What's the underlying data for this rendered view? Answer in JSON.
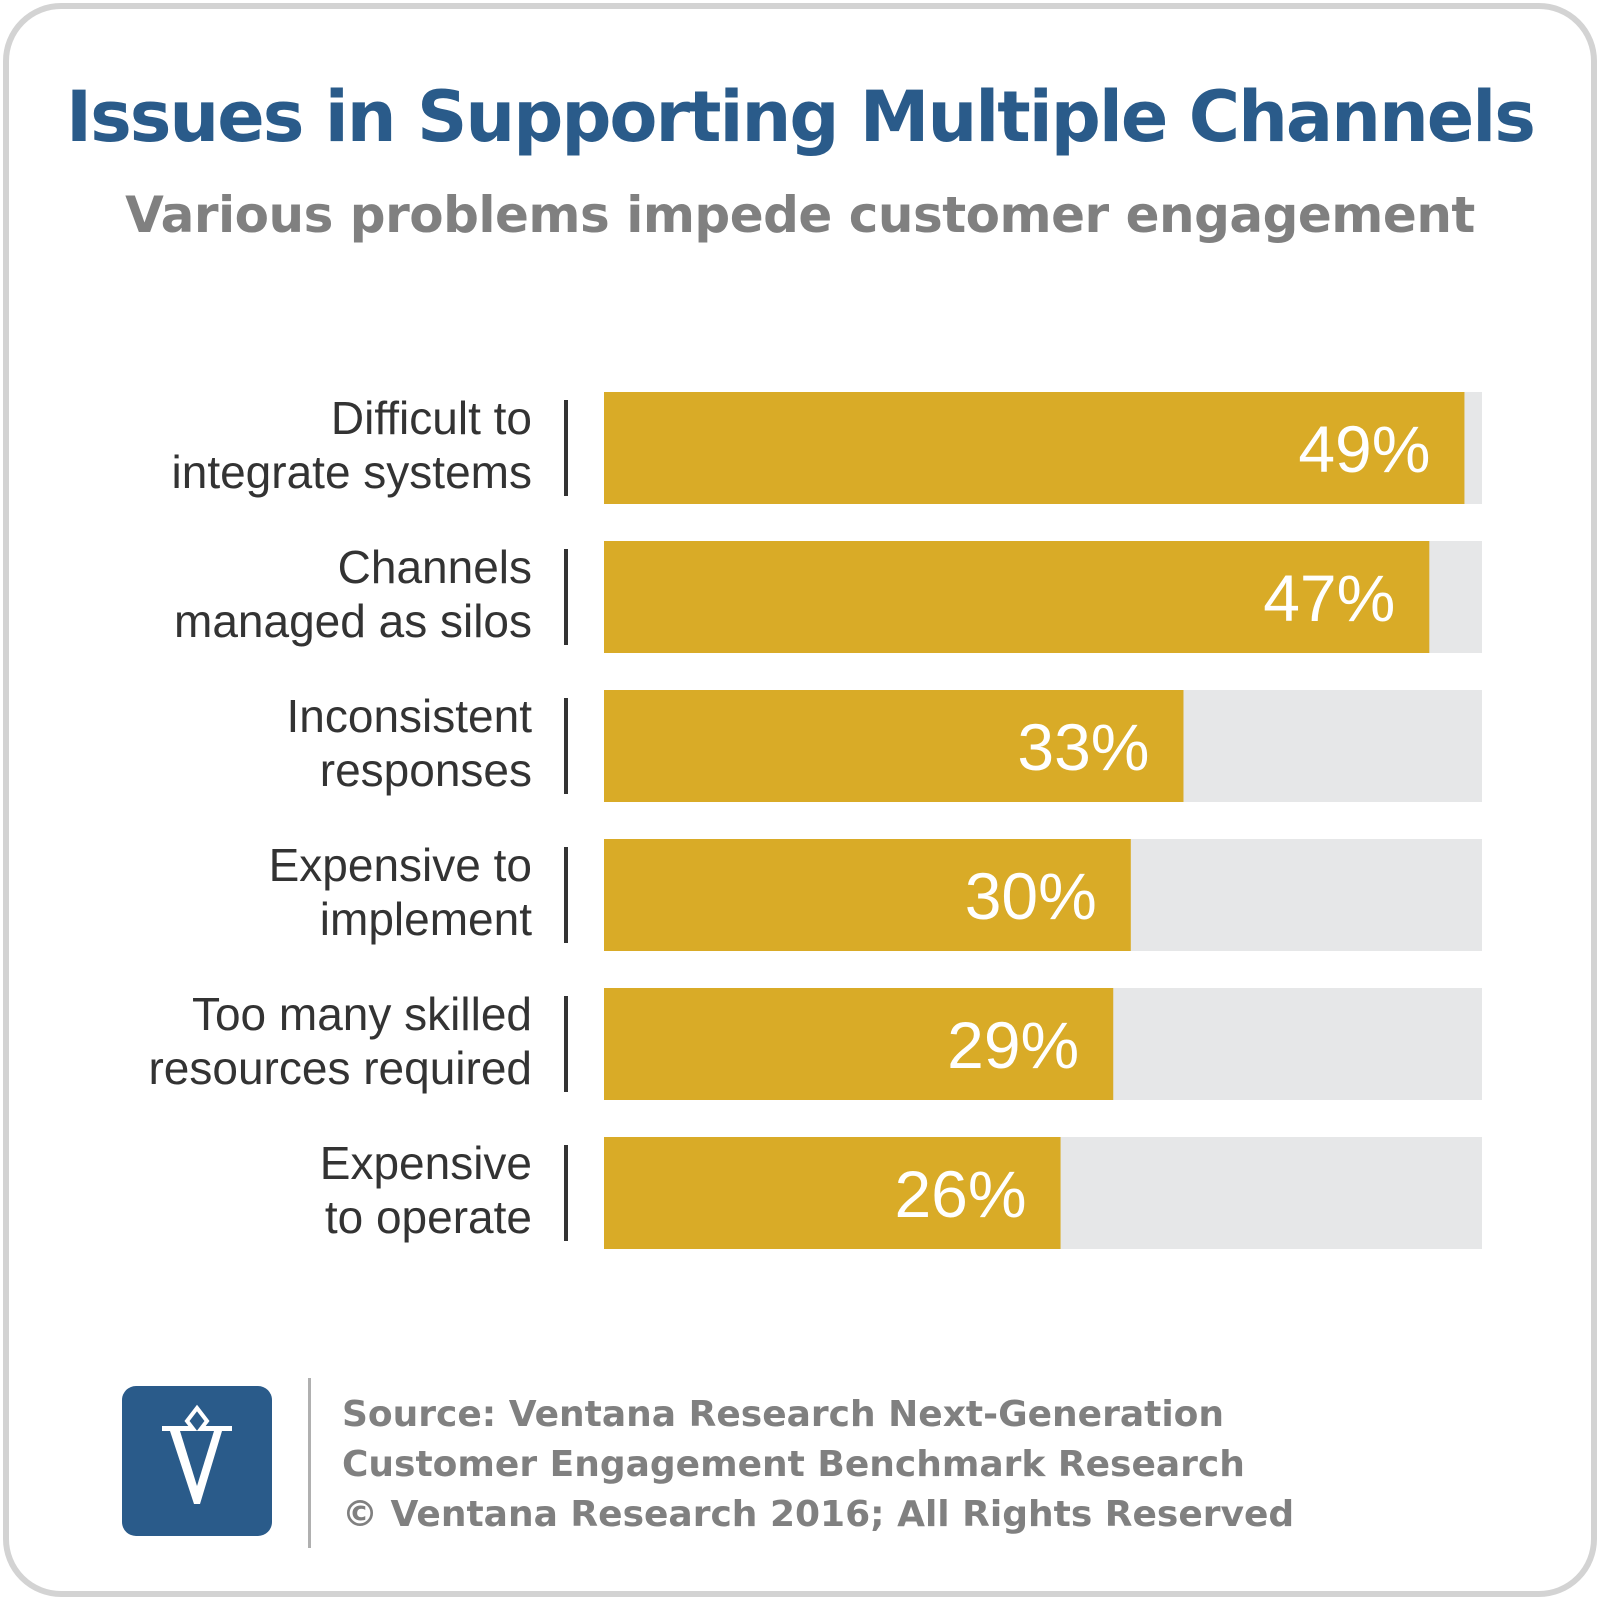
{
  "title": "Issues in Supporting Multiple Channels",
  "subtitle": "Various problems impede customer engagement",
  "colors": {
    "title": "#2a5b8a",
    "subtitle": "#808080",
    "bar": "#d9ab27",
    "track": "#e6e7e8",
    "value_label": "#ffffff",
    "category_label": "#333333",
    "logo": "#2a5b8a"
  },
  "chart_data": {
    "type": "bar",
    "orientation": "horizontal",
    "categories": [
      [
        "Difficult to",
        "integrate systems"
      ],
      [
        "Channels",
        "managed as silos"
      ],
      [
        "Inconsistent",
        "responses"
      ],
      [
        "Expensive to",
        "implement"
      ],
      [
        "Too many skilled",
        "resources required"
      ],
      [
        "Expensive",
        "to operate"
      ]
    ],
    "values": [
      49,
      47,
      33,
      30,
      29,
      26
    ],
    "value_labels": [
      "49%",
      "47%",
      "33%",
      "30%",
      "29%",
      "26%"
    ],
    "xlim": [
      0,
      50
    ],
    "unit": "%",
    "grid": false,
    "legend": "none"
  },
  "footer": {
    "logo_icon": "ventana-v-logo-icon",
    "source_lines": [
      "Source: Ventana Research Next-Generation",
      "Customer Engagement Benchmark Research",
      "© Ventana Research 2016; All Rights Reserved"
    ]
  }
}
